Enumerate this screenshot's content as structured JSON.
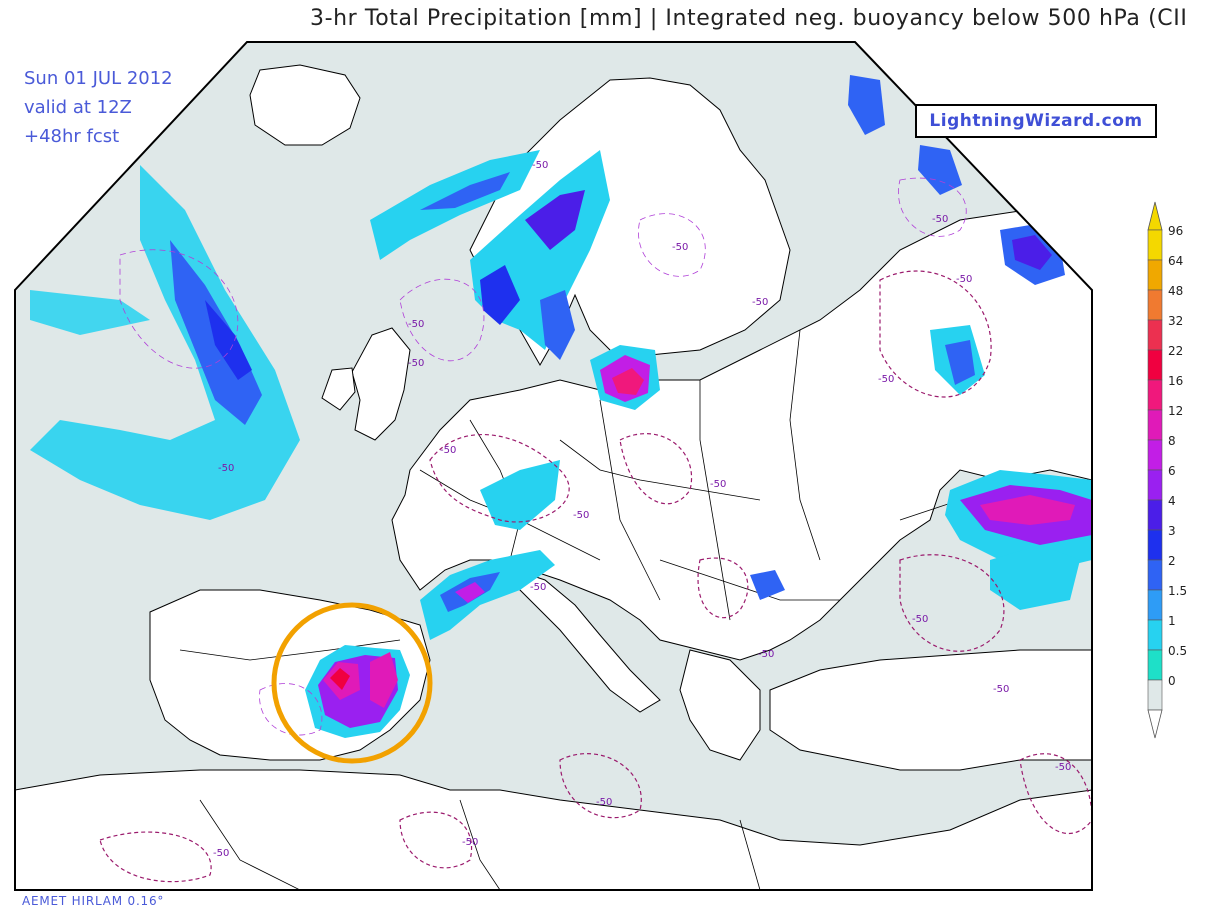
{
  "title": "3-hr Total Precipitation [mm] | Integrated neg. buoyancy below 500 hPa (CII",
  "forecast_info": {
    "date": "Sun 01 JUL 2012",
    "valid": "valid at 12Z",
    "lead": "+48hr fcst"
  },
  "brand": "LightningWizard.com",
  "model": "AEMET HIRLAM 0.16°",
  "contour_label": "-50",
  "legend": {
    "ticks": [
      "96",
      "64",
      "48",
      "32",
      "22",
      "16",
      "12",
      "8",
      "6",
      "4",
      "3",
      "2",
      "1.5",
      "1",
      "0.5",
      "0"
    ],
    "colors": [
      "#f4d800",
      "#f0a800",
      "#f07a30",
      "#ec3050",
      "#f00040",
      "#f0187c",
      "#e01ab8",
      "#c21ee6",
      "#9a20f0",
      "#4b1ee8",
      "#1e30ee",
      "#2f63f4",
      "#2e9cf6",
      "#27d2f0",
      "#1ee0c8",
      "#dfe8e8"
    ],
    "arrow_top_color": "#f4d800",
    "arrow_bottom_color": "#ffffff"
  },
  "highlight": {
    "color": "#f2a100",
    "area": "Iberian Peninsula / Spain"
  },
  "palette": {
    "land": "#ffffff",
    "sea_low": "#dfe8e8",
    "contour": "#9b1b6d",
    "border": "#000000"
  }
}
